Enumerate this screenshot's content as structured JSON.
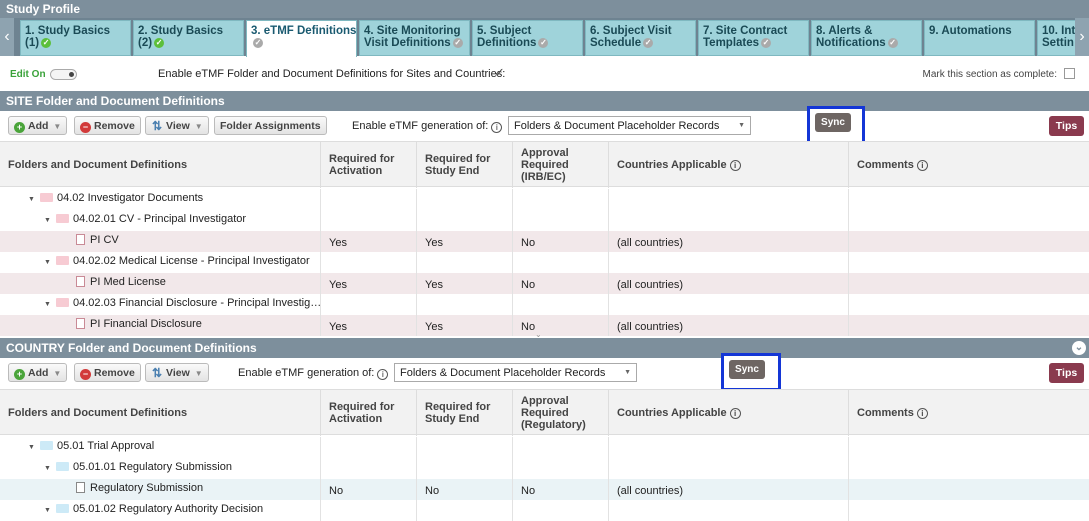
{
  "app_title": "Study Profile",
  "tabs": [
    {
      "line1": "1. Study Basics",
      "line2": "(1)",
      "done": true
    },
    {
      "line1": "2. Study Basics",
      "line2": "(2)",
      "done": true
    },
    {
      "line1": "3. eTMF Definitions",
      "line2": "",
      "done": false
    },
    {
      "line1": "4. Site Monitoring",
      "line2": "Visit Definitions",
      "done": false
    },
    {
      "line1": "5. Subject",
      "line2": "Definitions",
      "done": false
    },
    {
      "line1": "6. Subject Visit",
      "line2": "Schedule",
      "done": false
    },
    {
      "line1": "7. Site Contract",
      "line2": "Templates",
      "done": false
    },
    {
      "line1": "8. Alerts &",
      "line2": "Notifications",
      "done": false
    },
    {
      "line1": "9. Automations",
      "line2": "",
      "done": false
    },
    {
      "line1": "10. Int",
      "line2": "Settin",
      "done": false
    }
  ],
  "edit_label": "Edit On",
  "enable_folder_label": "Enable eTMF Folder and Document Definitions for Sites and Countries:",
  "mark_complete_label": "Mark this section as complete:",
  "toolbar": {
    "add": "Add",
    "remove": "Remove",
    "view": "View",
    "folder_assignments": "Folder Assignments",
    "enable_gen_label": "Enable eTMF generation of:",
    "gen_value": "Folders & Document Placeholder Records",
    "sync": "Sync",
    "tips": "Tips"
  },
  "site": {
    "title": "SITE Folder and Document Definitions",
    "headers": [
      "Folders and Document Definitions",
      "Required for Activation",
      "Required for Study End",
      "Approval Required (IRB/EC)",
      "Countries Applicable",
      "Comments"
    ],
    "rows": [
      {
        "name": "04.02 Investigator Documents",
        "kind": "folder",
        "level": 1,
        "act": "",
        "end": "",
        "appr": "",
        "countries": ""
      },
      {
        "name": "04.02.01 CV - Principal Investigator",
        "kind": "folder",
        "level": 2,
        "act": "",
        "end": "",
        "appr": "",
        "countries": ""
      },
      {
        "name": "PI CV",
        "kind": "doc",
        "level": 3,
        "act": "Yes",
        "end": "Yes",
        "appr": "No",
        "countries": "(all countries)"
      },
      {
        "name": "04.02.02 Medical License - Principal Investigator",
        "kind": "folder",
        "level": 2,
        "act": "",
        "end": "",
        "appr": "",
        "countries": ""
      },
      {
        "name": "PI Med License",
        "kind": "doc",
        "level": 3,
        "act": "Yes",
        "end": "Yes",
        "appr": "No",
        "countries": "(all countries)"
      },
      {
        "name": "04.02.03 Financial Disclosure - Principal Investig…",
        "kind": "folder",
        "level": 2,
        "act": "",
        "end": "",
        "appr": "",
        "countries": ""
      },
      {
        "name": "PI Financial Disclosure",
        "kind": "doc",
        "level": 3,
        "act": "Yes",
        "end": "Yes",
        "appr": "No",
        "countries": "(all countries)"
      }
    ]
  },
  "country": {
    "title": "COUNTRY Folder and Document Definitions",
    "headers": [
      "Folders and Document Definitions",
      "Required for Activation",
      "Required for Study End",
      "Approval Required (Regulatory)",
      "Countries Applicable",
      "Comments"
    ],
    "rows": [
      {
        "name": "05.01 Trial Approval",
        "kind": "folder",
        "level": 1,
        "act": "",
        "end": "",
        "appr": "",
        "countries": ""
      },
      {
        "name": "05.01.01 Regulatory Submission",
        "kind": "folder",
        "level": 2,
        "act": "",
        "end": "",
        "appr": "",
        "countries": ""
      },
      {
        "name": "Regulatory Submission",
        "kind": "doc",
        "level": 3,
        "act": "No",
        "end": "No",
        "appr": "No",
        "countries": "(all countries)"
      },
      {
        "name": "05.01.02 Regulatory Authority Decision",
        "kind": "folder",
        "level": 2,
        "act": "",
        "end": "",
        "appr": "",
        "countries": ""
      }
    ]
  },
  "colors": {
    "accent": "#7d8f9c",
    "tab": "#9fd3da",
    "sync_highlight": "#1436d6",
    "tips": "#8a3a4e",
    "ok": "#5cbf3a"
  }
}
